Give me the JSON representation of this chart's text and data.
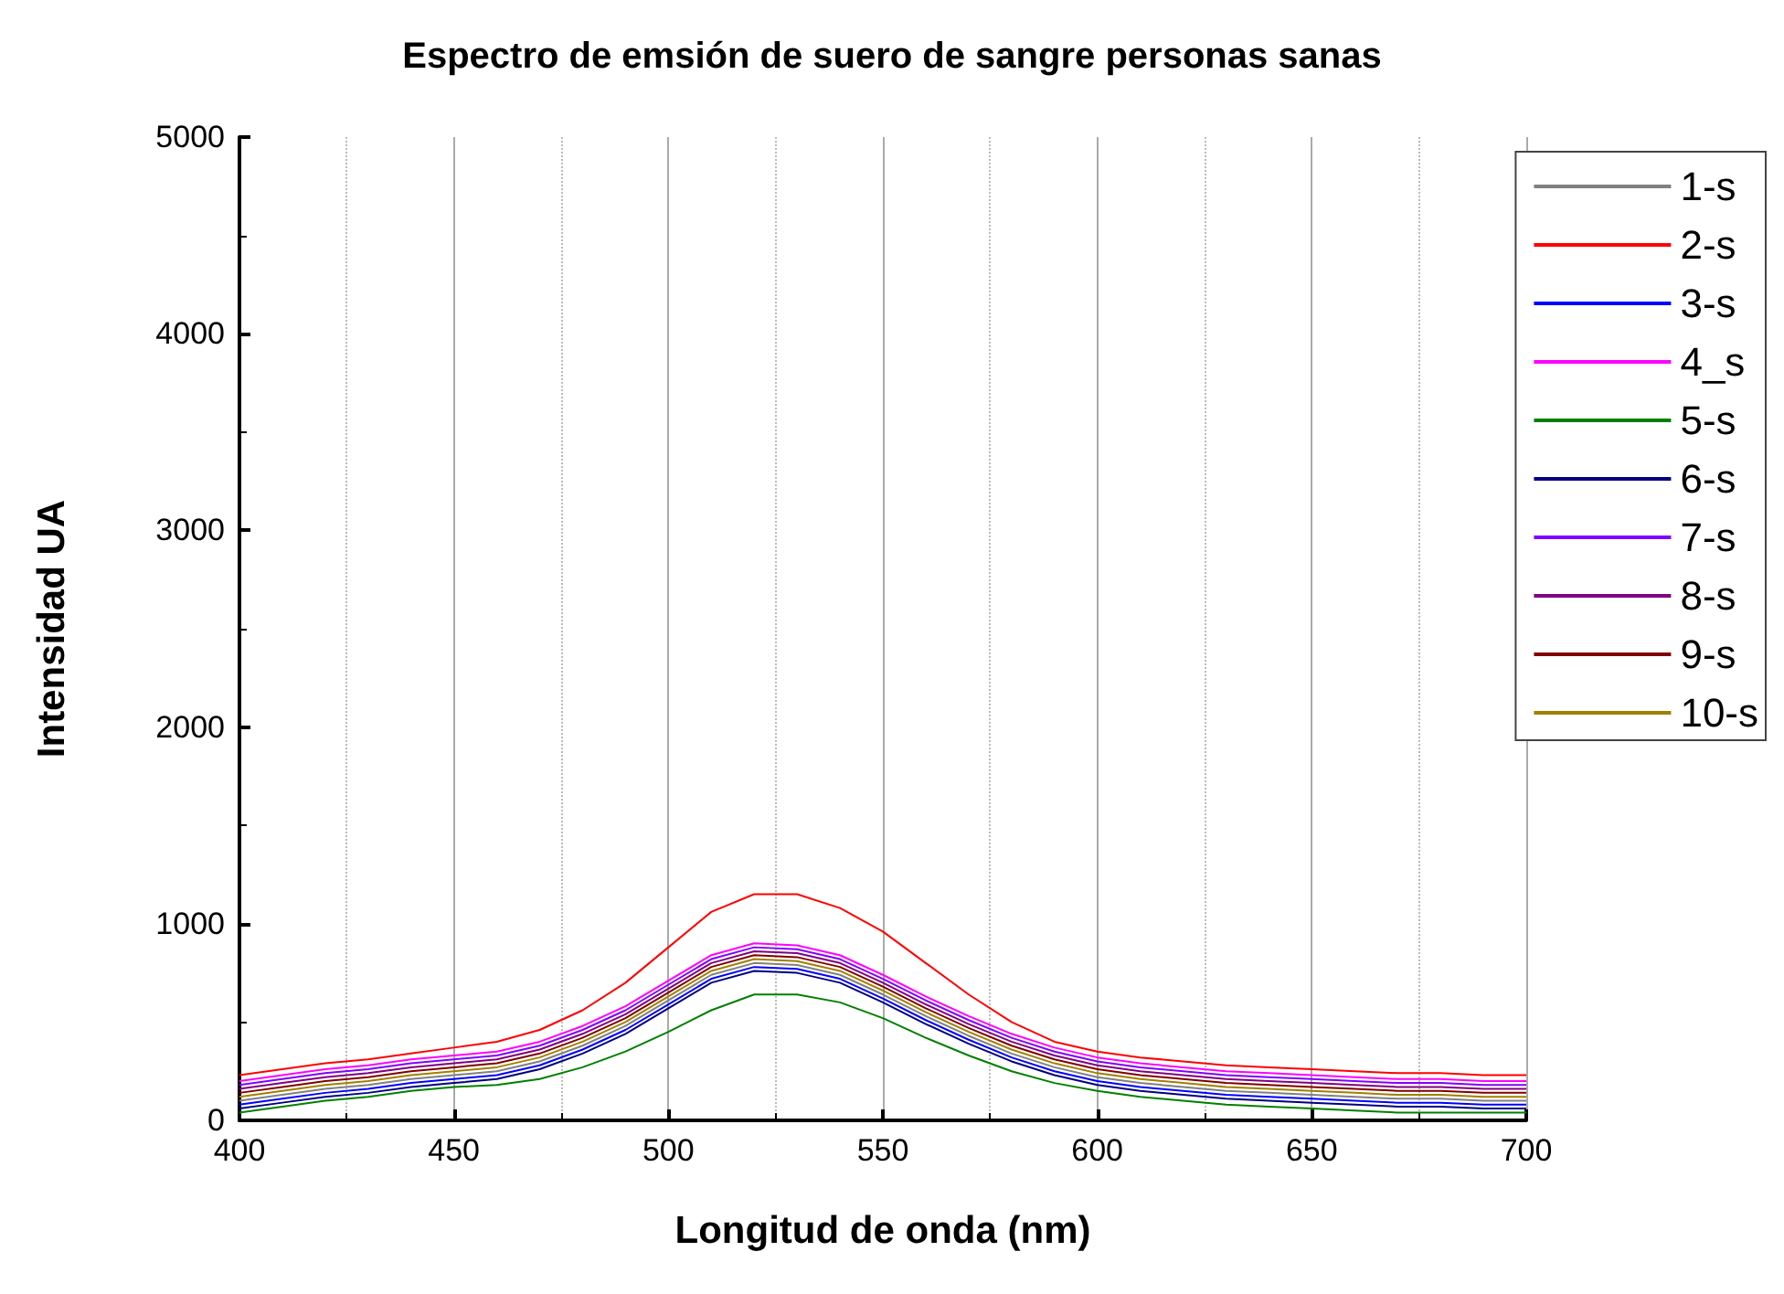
{
  "chart_data": {
    "type": "line",
    "title": "Espectro de emsión de suero de sangre personas sanas",
    "xlabel": "Longitud de onda (nm)",
    "ylabel": "Intensidad UA",
    "x": [
      400,
      410,
      420,
      430,
      440,
      450,
      460,
      470,
      480,
      490,
      500,
      510,
      520,
      530,
      540,
      550,
      560,
      570,
      580,
      590,
      600,
      610,
      620,
      630,
      640,
      650,
      660,
      670,
      680,
      690,
      700
    ],
    "xlim": [
      400,
      700
    ],
    "xticks": [
      400,
      450,
      500,
      550,
      600,
      650,
      700
    ],
    "ylim": [
      0,
      5000
    ],
    "yticks": [
      0,
      1000,
      2000,
      3000,
      4000,
      5000
    ],
    "grid": "x",
    "legend": "top right",
    "marker": "none",
    "line_style": "solid",
    "series": [
      {
        "name": "1-s",
        "color": "#808080",
        "values": [
          100,
          130,
          160,
          180,
          210,
          230,
          250,
          300,
          380,
          480,
          610,
          740,
          800,
          790,
          740,
          640,
          530,
          430,
          340,
          270,
          220,
          190,
          170,
          150,
          140,
          130,
          120,
          110,
          110,
          100,
          100
        ]
      },
      {
        "name": "2-s",
        "color": "#ff0000",
        "values": [
          230,
          260,
          290,
          310,
          340,
          370,
          400,
          460,
          560,
          700,
          880,
          1060,
          1150,
          1150,
          1080,
          960,
          800,
          640,
          500,
          400,
          350,
          320,
          300,
          280,
          270,
          260,
          250,
          240,
          240,
          230,
          230
        ]
      },
      {
        "name": "3-s",
        "color": "#0000ff",
        "values": [
          80,
          110,
          140,
          160,
          190,
          210,
          230,
          280,
          360,
          460,
          590,
          720,
          780,
          770,
          720,
          620,
          510,
          410,
          320,
          250,
          200,
          170,
          150,
          130,
          120,
          110,
          100,
          90,
          90,
          80,
          80
        ]
      },
      {
        "name": "4_s",
        "color": "#ff00ff",
        "values": [
          200,
          230,
          260,
          280,
          310,
          330,
          350,
          400,
          480,
          580,
          710,
          840,
          900,
          890,
          840,
          740,
          630,
          530,
          440,
          370,
          320,
          290,
          270,
          250,
          240,
          230,
          220,
          210,
          210,
          200,
          200
        ]
      },
      {
        "name": "5-s",
        "color": "#008000",
        "values": [
          40,
          70,
          100,
          120,
          150,
          170,
          180,
          210,
          270,
          350,
          450,
          560,
          640,
          640,
          600,
          520,
          420,
          330,
          250,
          190,
          150,
          120,
          100,
          80,
          70,
          60,
          50,
          40,
          40,
          40,
          40
        ]
      },
      {
        "name": "6-s",
        "color": "#000080",
        "values": [
          60,
          90,
          120,
          140,
          170,
          190,
          210,
          260,
          340,
          440,
          570,
          700,
          760,
          750,
          700,
          600,
          490,
          390,
          300,
          230,
          180,
          150,
          130,
          110,
          100,
          90,
          80,
          70,
          70,
          60,
          60
        ]
      },
      {
        "name": "7-s",
        "color": "#8000ff",
        "values": [
          180,
          210,
          240,
          260,
          290,
          310,
          330,
          380,
          460,
          560,
          690,
          820,
          880,
          870,
          820,
          720,
          610,
          510,
          420,
          350,
          300,
          270,
          250,
          230,
          220,
          210,
          200,
          190,
          190,
          180,
          180
        ]
      },
      {
        "name": "8-s",
        "color": "#800080",
        "values": [
          160,
          190,
          220,
          240,
          270,
          290,
          310,
          360,
          440,
          540,
          670,
          800,
          860,
          850,
          800,
          700,
          590,
          490,
          400,
          330,
          280,
          250,
          230,
          210,
          200,
          190,
          180,
          170,
          170,
          160,
          160
        ]
      },
      {
        "name": "9-s",
        "color": "#800000",
        "values": [
          140,
          170,
          200,
          220,
          250,
          270,
          290,
          340,
          420,
          520,
          650,
          780,
          840,
          830,
          780,
          680,
          570,
          470,
          380,
          310,
          260,
          230,
          210,
          190,
          180,
          170,
          160,
          150,
          150,
          140,
          140
        ]
      },
      {
        "name": "10-s",
        "color": "#a08000",
        "values": [
          120,
          150,
          180,
          200,
          230,
          250,
          270,
          320,
          400,
          500,
          630,
          760,
          820,
          810,
          760,
          660,
          550,
          450,
          360,
          290,
          240,
          210,
          190,
          170,
          160,
          150,
          140,
          130,
          130,
          120,
          120
        ]
      }
    ]
  }
}
